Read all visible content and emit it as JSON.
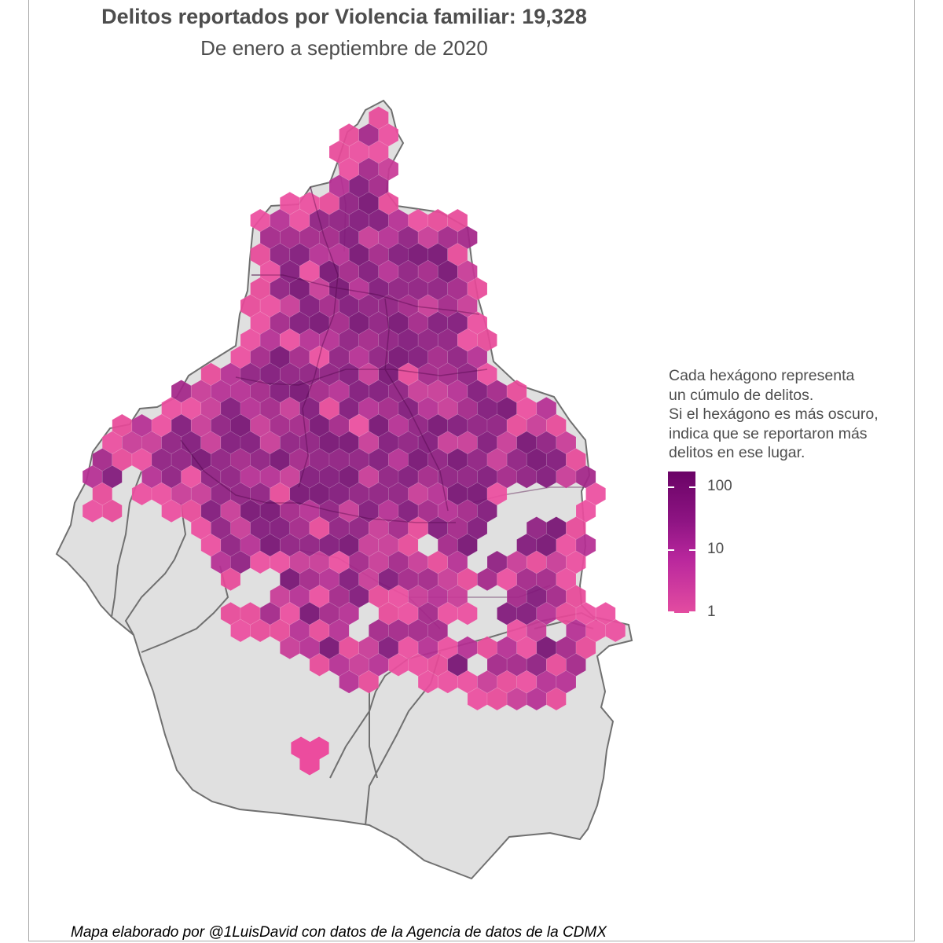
{
  "title": "Delitos reportados por Violencia familiar: 19,328",
  "subtitle": "De enero a septiembre de 2020",
  "legend": {
    "lines": [
      "Cada hexágono representa",
      "un cúmulo de delitos.",
      "Si el hexágono es más oscuro,",
      "indica que se reportaron más",
      "delitos en ese lugar."
    ],
    "ticks": [
      {
        "label": "100",
        "value": 100
      },
      {
        "label": "10",
        "value": 10
      },
      {
        "label": "1",
        "value": 1
      }
    ],
    "color_scale": {
      "low": "#e84c9c",
      "mid": "#b5259a",
      "high": "#6b0468"
    }
  },
  "caption": "Mapa elaborado por @1LuisDavid con datos de la Agencia de datos de la CDMX",
  "colors": {
    "land": "#e0e0e0",
    "border": "#707070",
    "text": "#4d4d4d"
  }
}
